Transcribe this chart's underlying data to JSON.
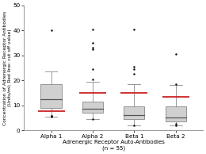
{
  "categories": [
    "Alpha 1",
    "Alpha 2",
    "Beta 1",
    "Beta 2"
  ],
  "xlabel": "Adrenergic Receptor Auto-Antibodies\n(n = 55)",
  "ylabel": "Concentration of Adrenergic Receptor Antibodies\n(Units/ml; Red line: cut off value)",
  "ylim": [
    0,
    50
  ],
  "yticks": [
    0,
    10,
    20,
    30,
    40,
    50
  ],
  "background_color": "#ffffff",
  "box_facecolor": "#d0d0d0",
  "box_edgecolor": "#888888",
  "median_color": "#555555",
  "whisker_color": "#888888",
  "red_line_color": "#cc2222",
  "outlier_color": "#111111",
  "boxes": [
    {
      "q1": 9.0,
      "median": 12.5,
      "q3": 18.5,
      "whisker_low": 5.5,
      "whisker_high": 23.5,
      "red_line": 7.5,
      "outliers": [
        5.5,
        5.7,
        5.9,
        40.0
      ]
    },
    {
      "q1": 7.0,
      "median": 8.5,
      "q3": 11.5,
      "whisker_low": 4.5,
      "whisker_high": 19.5,
      "red_line": 15.0,
      "outliers": [
        4.5,
        20.5,
        24.5,
        32.5,
        33.0,
        35.0,
        40.5
      ]
    },
    {
      "q1": 4.5,
      "median": 6.0,
      "q3": 9.5,
      "whisker_low": 2.0,
      "whisker_high": 18.5,
      "red_line": 15.0,
      "outliers": [
        2.0,
        22.5,
        24.5,
        25.5,
        40.5
      ]
    },
    {
      "q1": 3.5,
      "median": 5.0,
      "q3": 9.5,
      "whisker_low": 2.0,
      "whisker_high": 18.0,
      "red_line": 13.5,
      "outliers": [
        2.0,
        2.5,
        18.5,
        30.5
      ]
    }
  ]
}
